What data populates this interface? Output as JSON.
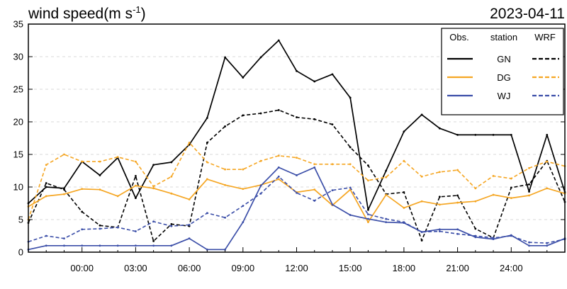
{
  "chart_data": {
    "type": "line",
    "title": "wind speed(m s",
    "title_superscript": "-1",
    "title_suffix": ")",
    "date_label": "2023-04-11",
    "xlabel": "",
    "ylabel": "",
    "x_hours": [
      -3,
      -2,
      -1,
      0,
      1,
      2,
      3,
      4,
      5,
      6,
      7,
      8,
      9,
      10,
      11,
      12,
      13,
      14,
      15,
      16,
      17,
      18,
      19,
      20,
      21,
      22,
      23,
      24,
      25,
      26,
      27
    ],
    "xlim": [
      -3,
      27
    ],
    "ylim": [
      0,
      35
    ],
    "y_ticks": [
      0,
      5,
      10,
      15,
      20,
      25,
      30,
      35
    ],
    "x_ticks": [
      {
        "hour": 0,
        "label": "00:00"
      },
      {
        "hour": 3,
        "label": "03:00"
      },
      {
        "hour": 6,
        "label": "06:00"
      },
      {
        "hour": 9,
        "label": "09:00"
      },
      {
        "hour": 12,
        "label": "12:00"
      },
      {
        "hour": 15,
        "label": "15:00"
      },
      {
        "hour": 18,
        "label": "18:00"
      },
      {
        "hour": 21,
        "label": "21:00"
      },
      {
        "hour": 24,
        "label": "24:00"
      }
    ],
    "grid": "horizontal-dashed",
    "legend": {
      "placement": "top-right",
      "headers": [
        "Obs.",
        "station",
        "WRF"
      ],
      "rows": [
        {
          "station": "GN",
          "color": "#000000"
        },
        {
          "station": "DG",
          "color": "#f5a623"
        },
        {
          "station": "WJ",
          "color": "#3b4ea8"
        }
      ]
    },
    "series": [
      {
        "station": "GN",
        "source": "Obs.",
        "color": "#000000",
        "dashed": false,
        "values": [
          7.5,
          10,
          9.8,
          13.9,
          11.8,
          14.5,
          8.3,
          13.4,
          13.8,
          16.5,
          20.6,
          29.9,
          26.8,
          29.9,
          32.5,
          27.8,
          26.2,
          27.3,
          23.7,
          6.5,
          12.5,
          18.5,
          21.1,
          19,
          18,
          18,
          18,
          18,
          9.3,
          18,
          9.2
        ]
      },
      {
        "station": "GN",
        "source": "WRF",
        "color": "#000000",
        "dashed": true,
        "values": [
          4.5,
          10.6,
          9.6,
          6.2,
          4.1,
          3.8,
          11.7,
          1.7,
          4.3,
          4,
          16.8,
          19.3,
          21,
          21.3,
          21.8,
          20.7,
          20.4,
          19.6,
          16.1,
          13.3,
          8.9,
          9.2,
          1.8,
          8.5,
          8.7,
          3.6,
          2.2,
          9.9,
          10.4,
          14,
          7.7
        ]
      },
      {
        "station": "DG",
        "source": "Obs.",
        "color": "#f5a623",
        "dashed": false,
        "values": [
          7,
          8.6,
          8.9,
          9.7,
          9.6,
          8.6,
          10.2,
          9.8,
          9,
          8.1,
          11.2,
          10.3,
          9.7,
          10.3,
          11.2,
          9.2,
          9.6,
          7.2,
          9.6,
          4.6,
          8.8,
          6.8,
          7.8,
          7.3,
          7.6,
          7.8,
          8.8,
          8.3,
          8.7,
          9.8,
          9
        ]
      },
      {
        "station": "DG",
        "source": "WRF",
        "color": "#f5a623",
        "dashed": true,
        "values": [
          5,
          13.4,
          15,
          13.9,
          13.9,
          14.6,
          13.9,
          10.1,
          11.6,
          16.8,
          13.8,
          12.7,
          12.7,
          14,
          14.8,
          14.5,
          13.5,
          13.5,
          13.5,
          11,
          11.5,
          14,
          11.6,
          12.3,
          12.6,
          9.8,
          11.7,
          11.3,
          12.9,
          13.9,
          13.2
        ]
      },
      {
        "station": "WJ",
        "source": "Obs.",
        "color": "#3b4ea8",
        "dashed": false,
        "values": [
          0.4,
          1,
          1,
          1,
          1,
          1,
          1,
          1,
          1,
          2.1,
          0.4,
          0.4,
          4.6,
          10.2,
          13,
          11.8,
          13,
          7.3,
          5.7,
          5.1,
          4.6,
          4.5,
          3.1,
          3.5,
          3.5,
          2.3,
          2,
          2.6,
          1,
          1,
          2.1
        ]
      },
      {
        "station": "WJ",
        "source": "WRF",
        "color": "#3b4ea8",
        "dashed": true,
        "values": [
          1.6,
          2.5,
          2.1,
          3.5,
          3.6,
          3.8,
          3.2,
          4.7,
          4,
          4.2,
          6,
          5.3,
          7.1,
          9,
          11.6,
          9.1,
          7.9,
          9.5,
          9.9,
          5.8,
          5.1,
          4.6,
          3.1,
          3.2,
          2.8,
          2.5,
          2.2,
          2.5,
          1.5,
          1.4,
          2
        ]
      }
    ]
  }
}
